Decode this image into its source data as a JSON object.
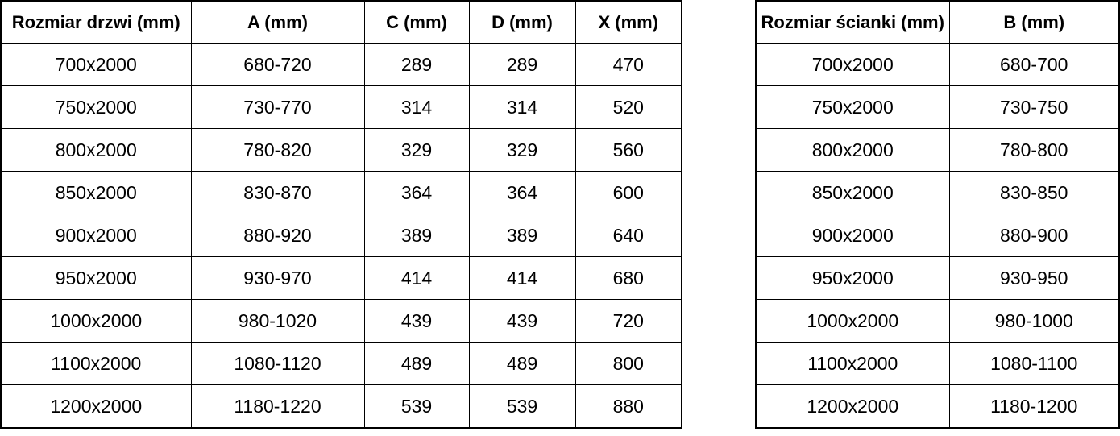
{
  "colors": {
    "border": "#000000",
    "text": "#000000",
    "background": "#ffffff"
  },
  "chart_data": [
    {
      "type": "table",
      "name": "doors",
      "title": "",
      "columns": [
        "Rozmiar drzwi (mm)",
        "A (mm)",
        "C (mm)",
        "D (mm)",
        "X (mm)"
      ],
      "rows": [
        [
          "700x2000",
          "680-720",
          "289",
          "289",
          "470"
        ],
        [
          "750x2000",
          "730-770",
          "314",
          "314",
          "520"
        ],
        [
          "800x2000",
          "780-820",
          "329",
          "329",
          "560"
        ],
        [
          "850x2000",
          "830-870",
          "364",
          "364",
          "600"
        ],
        [
          "900x2000",
          "880-920",
          "389",
          "389",
          "640"
        ],
        [
          "950x2000",
          "930-970",
          "414",
          "414",
          "680"
        ],
        [
          "1000x2000",
          "980-1020",
          "439",
          "439",
          "720"
        ],
        [
          "1100x2000",
          "1080-1120",
          "489",
          "489",
          "800"
        ],
        [
          "1200x2000",
          "1180-1220",
          "539",
          "539",
          "880"
        ]
      ]
    },
    {
      "type": "table",
      "name": "walls",
      "title": "",
      "columns": [
        "Rozmiar ścianki (mm)",
        "B (mm)"
      ],
      "rows": [
        [
          "700x2000",
          "680-700"
        ],
        [
          "750x2000",
          "730-750"
        ],
        [
          "800x2000",
          "780-800"
        ],
        [
          "850x2000",
          "830-850"
        ],
        [
          "900x2000",
          "880-900"
        ],
        [
          "950x2000",
          "930-950"
        ],
        [
          "1000x2000",
          "980-1000"
        ],
        [
          "1100x2000",
          "1080-1100"
        ],
        [
          "1200x2000",
          "1180-1200"
        ]
      ]
    }
  ]
}
